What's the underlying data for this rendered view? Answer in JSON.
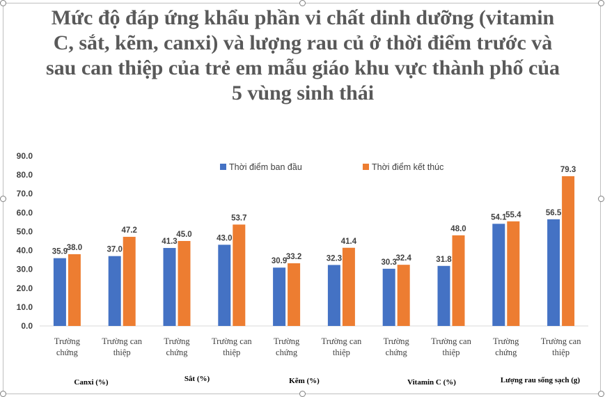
{
  "chart_data": {
    "type": "bar",
    "title": "Mức độ đáp ứng khẩu phần vi chất dinh dưỡng (vitamin C, sắt, kẽm, canxi) và lượng rau củ ở thời điểm trước và sau can thiệp của trẻ em mẫu giáo khu vực thành phố của 5 vùng sinh thái",
    "categories": [
      "Trường chứng",
      "Trường can thiệp",
      "Trường chứng",
      "Trường can thiệp",
      "Trường chứng",
      "Trường can thiệp",
      "Trường chứng",
      "Trường can thiệp",
      "Trường chứng",
      "Trường can thiệp"
    ],
    "groups": [
      "Canxi (%)",
      "Sắt (%)",
      "Kẽm (%)",
      "Vitamin C (%)",
      "Lượng rau sống sạch (g)"
    ],
    "series": [
      {
        "name": "Thời điểm ban đầu",
        "color": "#4472c4",
        "values": [
          35.9,
          37.0,
          41.3,
          43.0,
          30.9,
          32.3,
          30.3,
          31.8,
          54.1,
          56.5
        ]
      },
      {
        "name": "Thời điểm kết thúc",
        "color": "#ed7d31",
        "values": [
          38.0,
          47.2,
          45.0,
          53.7,
          33.2,
          41.4,
          32.4,
          48.0,
          55.4,
          79.3
        ]
      }
    ],
    "yticks": [
      "0.0",
      "10.0",
      "20.0",
      "30.0",
      "40.0",
      "50.0",
      "60.0",
      "70.0",
      "80.0",
      "90.0"
    ],
    "ylim": [
      0,
      90
    ],
    "legend_position": "top",
    "grid": false
  }
}
